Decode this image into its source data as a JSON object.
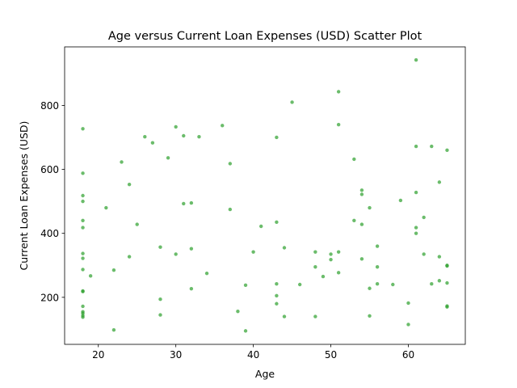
{
  "chart_data": {
    "type": "scatter",
    "title": "Age versus Current Loan Expenses (USD) Scatter Plot",
    "xlabel": "Age",
    "ylabel": "Current Loan Expenses (USD)",
    "xlim": [
      15.65,
      67.35
    ],
    "ylim": [
      53,
      983
    ],
    "xticks": [
      20,
      30,
      40,
      50,
      60
    ],
    "yticks": [
      200,
      400,
      600,
      800
    ],
    "grid": false,
    "color": "#2ca02c",
    "points": [
      {
        "x": 18,
        "y": 727
      },
      {
        "x": 18,
        "y": 588
      },
      {
        "x": 18,
        "y": 518
      },
      {
        "x": 18,
        "y": 500
      },
      {
        "x": 18,
        "y": 440
      },
      {
        "x": 18,
        "y": 418
      },
      {
        "x": 18,
        "y": 337
      },
      {
        "x": 18,
        "y": 322
      },
      {
        "x": 18,
        "y": 287
      },
      {
        "x": 18,
        "y": 220
      },
      {
        "x": 18,
        "y": 218
      },
      {
        "x": 18,
        "y": 172
      },
      {
        "x": 18,
        "y": 155
      },
      {
        "x": 18,
        "y": 150
      },
      {
        "x": 18,
        "y": 143
      },
      {
        "x": 18,
        "y": 138
      },
      {
        "x": 19,
        "y": 267
      },
      {
        "x": 21,
        "y": 480
      },
      {
        "x": 22,
        "y": 285
      },
      {
        "x": 22,
        "y": 98
      },
      {
        "x": 23,
        "y": 623
      },
      {
        "x": 24,
        "y": 553
      },
      {
        "x": 24,
        "y": 327
      },
      {
        "x": 25,
        "y": 428
      },
      {
        "x": 26,
        "y": 702
      },
      {
        "x": 27,
        "y": 683
      },
      {
        "x": 28,
        "y": 357
      },
      {
        "x": 28,
        "y": 194
      },
      {
        "x": 28,
        "y": 145
      },
      {
        "x": 29,
        "y": 636
      },
      {
        "x": 30,
        "y": 733
      },
      {
        "x": 30,
        "y": 335
      },
      {
        "x": 31,
        "y": 705
      },
      {
        "x": 31,
        "y": 493
      },
      {
        "x": 32,
        "y": 495
      },
      {
        "x": 32,
        "y": 352
      },
      {
        "x": 32,
        "y": 227
      },
      {
        "x": 33,
        "y": 702
      },
      {
        "x": 34,
        "y": 275
      },
      {
        "x": 36,
        "y": 737
      },
      {
        "x": 37,
        "y": 618
      },
      {
        "x": 37,
        "y": 475
      },
      {
        "x": 38,
        "y": 156
      },
      {
        "x": 39,
        "y": 238
      },
      {
        "x": 39,
        "y": 95
      },
      {
        "x": 40,
        "y": 342
      },
      {
        "x": 41,
        "y": 422
      },
      {
        "x": 43,
        "y": 700
      },
      {
        "x": 43,
        "y": 435
      },
      {
        "x": 43,
        "y": 242
      },
      {
        "x": 43,
        "y": 205
      },
      {
        "x": 43,
        "y": 180
      },
      {
        "x": 44,
        "y": 355
      },
      {
        "x": 44,
        "y": 140
      },
      {
        "x": 45,
        "y": 810
      },
      {
        "x": 46,
        "y": 240
      },
      {
        "x": 48,
        "y": 342
      },
      {
        "x": 48,
        "y": 295
      },
      {
        "x": 48,
        "y": 140
      },
      {
        "x": 49,
        "y": 265
      },
      {
        "x": 50,
        "y": 335
      },
      {
        "x": 50,
        "y": 318
      },
      {
        "x": 51,
        "y": 843
      },
      {
        "x": 51,
        "y": 740
      },
      {
        "x": 51,
        "y": 342
      },
      {
        "x": 51,
        "y": 277
      },
      {
        "x": 53,
        "y": 632
      },
      {
        "x": 53,
        "y": 440
      },
      {
        "x": 54,
        "y": 535
      },
      {
        "x": 54,
        "y": 522
      },
      {
        "x": 54,
        "y": 428
      },
      {
        "x": 54,
        "y": 320
      },
      {
        "x": 55,
        "y": 480
      },
      {
        "x": 55,
        "y": 228
      },
      {
        "x": 55,
        "y": 142
      },
      {
        "x": 56,
        "y": 360
      },
      {
        "x": 56,
        "y": 295
      },
      {
        "x": 56,
        "y": 242
      },
      {
        "x": 58,
        "y": 240
      },
      {
        "x": 59,
        "y": 503
      },
      {
        "x": 60,
        "y": 182
      },
      {
        "x": 60,
        "y": 115
      },
      {
        "x": 61,
        "y": 942
      },
      {
        "x": 61,
        "y": 672
      },
      {
        "x": 61,
        "y": 528
      },
      {
        "x": 61,
        "y": 418
      },
      {
        "x": 61,
        "y": 400
      },
      {
        "x": 62,
        "y": 450
      },
      {
        "x": 62,
        "y": 335
      },
      {
        "x": 63,
        "y": 672
      },
      {
        "x": 63,
        "y": 242
      },
      {
        "x": 64,
        "y": 560
      },
      {
        "x": 64,
        "y": 327
      },
      {
        "x": 64,
        "y": 252
      },
      {
        "x": 65,
        "y": 660
      },
      {
        "x": 65,
        "y": 300
      },
      {
        "x": 65,
        "y": 298
      },
      {
        "x": 65,
        "y": 245
      },
      {
        "x": 65,
        "y": 173
      },
      {
        "x": 65,
        "y": 170
      }
    ]
  }
}
